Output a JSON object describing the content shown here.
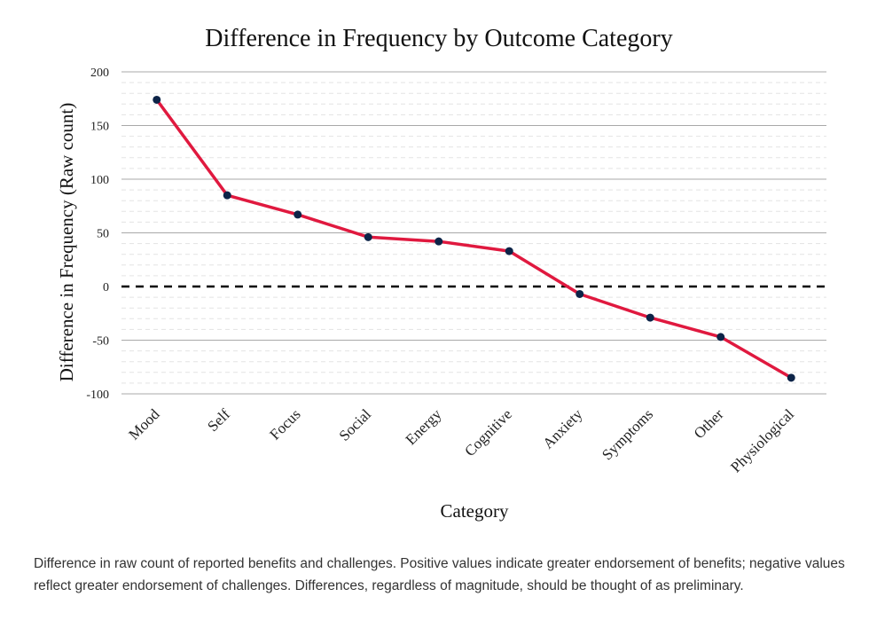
{
  "chart_data": {
    "type": "line",
    "title": "Difference in Frequency by Outcome Category",
    "xlabel": "Category",
    "ylabel": "Difference in Frequency (Raw count)",
    "categories": [
      "Mood",
      "Self",
      "Focus",
      "Social",
      "Energy",
      "Cognitive",
      "Anxiety",
      "Symptoms",
      "Other",
      "Physiological"
    ],
    "values": [
      174,
      85,
      67,
      46,
      42,
      33,
      -7,
      -29,
      -47,
      -85
    ],
    "ylim": [
      -100,
      200
    ],
    "yticks": [
      "200",
      "150",
      "100",
      "50",
      "0",
      "-50",
      "-100"
    ],
    "reference_line": 0,
    "grid": true,
    "line_color": "#e0193f",
    "marker_color": "#0d2448"
  },
  "caption": "Difference in raw count of reported benefits and challenges. Positive values indicate greater endorsement of benefits; negative values reflect greater endorsement of challenges. Differences, regardless of magnitude, should be thought of as preliminary."
}
